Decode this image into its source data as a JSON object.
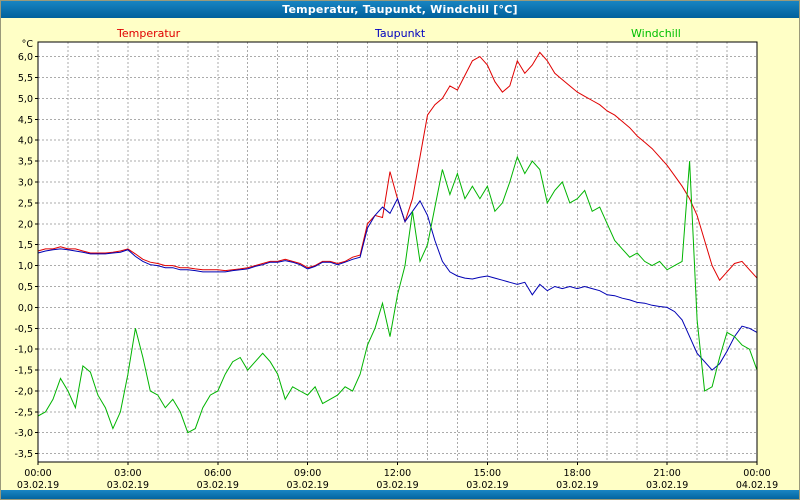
{
  "window": {
    "title": "Temperatur, Taupunkt, Windchill [°C]"
  },
  "legend": [
    {
      "label": "Temperatur",
      "color": "#e00000"
    },
    {
      "label": "Taupunkt",
      "color": "#0000c0"
    },
    {
      "label": "Windchill",
      "color": "#00c000"
    }
  ],
  "colors": {
    "page_background": "#ffffc6",
    "titlebar": "#0071ad",
    "plot_background": "#ffffff",
    "plot_border": "#000000",
    "gridline": "#ababab",
    "axis_text": "#000000"
  },
  "chart_data": {
    "type": "line",
    "title": "Temperatur, Taupunkt, Windchill [°C]",
    "ylabel": "°C",
    "ylim": [
      -3.5,
      6.0
    ],
    "ytick_step": 0.5,
    "ytick_values": [
      6.0,
      5.5,
      5.0,
      4.5,
      4.0,
      3.5,
      3.0,
      2.5,
      2.0,
      1.5,
      1.0,
      0.5,
      0.0,
      -0.5,
      -1.0,
      -1.5,
      -2.0,
      -2.5,
      -3.0,
      -3.5
    ],
    "ytick_labels": [
      "6,0",
      "5,5",
      "5,0",
      "4,5",
      "4,0",
      "3,5",
      "3,0",
      "2,5",
      "2,0",
      "1,5",
      "1,0",
      "0,5",
      "0,0",
      "-0,5",
      "-1,0",
      "-1,5",
      "-2,0",
      "-2,5",
      "-3,0",
      "-3,5"
    ],
    "xlim_hours": [
      0,
      24
    ],
    "xtick_hours": [
      0,
      3,
      6,
      9,
      12,
      15,
      18,
      21,
      24
    ],
    "xtick_labels": [
      "00:00",
      "03:00",
      "06:00",
      "09:00",
      "12:00",
      "15:00",
      "18:00",
      "21:00",
      "00:00"
    ],
    "xtick_dates": [
      "03.02.19",
      "03.02.19",
      "03.02.19",
      "03.02.19",
      "03.02.19",
      "03.02.19",
      "03.02.19",
      "03.02.19",
      "04.02.19"
    ],
    "grid": "dashed; vertical every 1 hour, horizontal every 0.5 °C",
    "legend_position": "top",
    "x_start_hour": 0,
    "x_step_hours": 0.25,
    "series": [
      {
        "name": "Temperatur",
        "color": "#e00000",
        "values": [
          1.35,
          1.4,
          1.4,
          1.45,
          1.4,
          1.4,
          1.35,
          1.3,
          1.3,
          1.3,
          1.32,
          1.35,
          1.4,
          1.28,
          1.15,
          1.08,
          1.05,
          1.0,
          1.0,
          0.95,
          0.95,
          0.92,
          0.9,
          0.9,
          0.9,
          0.88,
          0.9,
          0.92,
          0.95,
          1.0,
          1.05,
          1.1,
          1.1,
          1.15,
          1.1,
          1.05,
          0.95,
          1.0,
          1.1,
          1.1,
          1.05,
          1.1,
          1.2,
          1.25,
          2.0,
          2.2,
          2.15,
          3.25,
          2.6,
          2.05,
          2.6,
          3.6,
          4.6,
          4.85,
          5.0,
          5.3,
          5.2,
          5.55,
          5.9,
          6.0,
          5.8,
          5.4,
          5.15,
          5.3,
          5.9,
          5.6,
          5.8,
          6.1,
          5.9,
          5.6,
          5.45,
          5.3,
          5.15,
          5.05,
          4.95,
          4.85,
          4.7,
          4.6,
          4.45,
          4.3,
          4.1,
          3.95,
          3.8,
          3.6,
          3.4,
          3.15,
          2.9,
          2.6,
          2.2,
          1.6,
          1.0,
          0.65,
          0.85,
          1.05,
          1.1,
          0.9,
          0.7
        ]
      },
      {
        "name": "Taupunkt",
        "color": "#0000b4",
        "values": [
          1.3,
          1.35,
          1.38,
          1.4,
          1.38,
          1.35,
          1.32,
          1.28,
          1.28,
          1.28,
          1.3,
          1.32,
          1.38,
          1.22,
          1.1,
          1.02,
          1.0,
          0.95,
          0.95,
          0.9,
          0.9,
          0.88,
          0.85,
          0.85,
          0.85,
          0.85,
          0.88,
          0.9,
          0.92,
          0.98,
          1.02,
          1.08,
          1.08,
          1.12,
          1.08,
          1.02,
          0.92,
          0.98,
          1.08,
          1.08,
          1.02,
          1.08,
          1.15,
          1.2,
          1.9,
          2.2,
          2.4,
          2.25,
          2.6,
          2.05,
          2.3,
          2.55,
          2.2,
          1.6,
          1.1,
          0.85,
          0.75,
          0.7,
          0.68,
          0.72,
          0.75,
          0.7,
          0.65,
          0.6,
          0.55,
          0.6,
          0.3,
          0.55,
          0.4,
          0.5,
          0.45,
          0.5,
          0.45,
          0.5,
          0.45,
          0.4,
          0.3,
          0.28,
          0.22,
          0.18,
          0.12,
          0.1,
          0.05,
          0.02,
          0.0,
          -0.1,
          -0.3,
          -0.7,
          -1.1,
          -1.3,
          -1.5,
          -1.35,
          -1.05,
          -0.7,
          -0.45,
          -0.5,
          -0.6
        ]
      },
      {
        "name": "Windchill",
        "color": "#00b400",
        "values": [
          -2.6,
          -2.5,
          -2.2,
          -1.7,
          -2.0,
          -2.4,
          -1.4,
          -1.55,
          -2.1,
          -2.4,
          -2.9,
          -2.5,
          -1.6,
          -0.5,
          -1.2,
          -2.0,
          -2.1,
          -2.4,
          -2.2,
          -2.5,
          -3.0,
          -2.9,
          -2.4,
          -2.1,
          -2.0,
          -1.6,
          -1.3,
          -1.2,
          -1.5,
          -1.3,
          -1.1,
          -1.3,
          -1.6,
          -2.2,
          -1.9,
          -2.0,
          -2.1,
          -1.9,
          -2.3,
          -2.2,
          -2.1,
          -1.9,
          -2.0,
          -1.6,
          -0.9,
          -0.5,
          0.1,
          -0.7,
          0.3,
          1.0,
          2.3,
          1.1,
          1.5,
          2.4,
          3.3,
          2.7,
          3.2,
          2.6,
          2.9,
          2.6,
          2.9,
          2.3,
          2.5,
          3.0,
          3.6,
          3.2,
          3.5,
          3.3,
          2.5,
          2.8,
          3.0,
          2.5,
          2.6,
          2.8,
          2.3,
          2.4,
          2.0,
          1.6,
          1.4,
          1.2,
          1.3,
          1.1,
          1.0,
          1.1,
          0.9,
          1.0,
          1.1,
          3.5,
          -0.3,
          -2.0,
          -1.9,
          -1.2,
          -0.6,
          -0.7,
          -0.9,
          -1.0,
          -1.5
        ]
      }
    ]
  }
}
